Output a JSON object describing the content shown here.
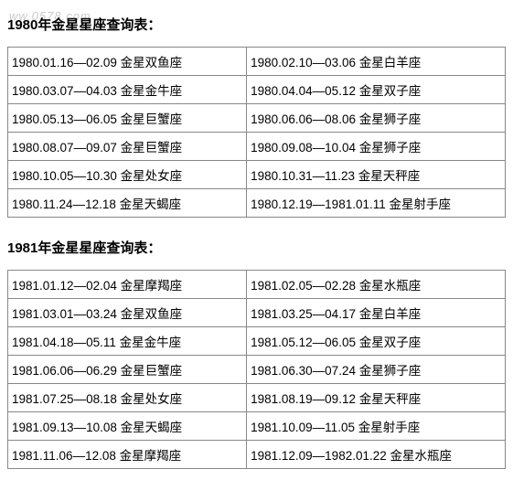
{
  "watermark": "ww.0578.com",
  "sections": [
    {
      "title": "1980年金星星座查询表：",
      "rows": [
        [
          "1980.01.16—02.09 金星双鱼座",
          "1980.02.10—03.06 金星白羊座"
        ],
        [
          "1980.03.07—04.03 金星金牛座",
          "1980.04.04—05.12 金星双子座"
        ],
        [
          "1980.05.13—06.05 金星巨蟹座",
          "1980.06.06—08.06 金星狮子座"
        ],
        [
          "1980.08.07—09.07 金星巨蟹座",
          "1980.09.08—10.04 金星狮子座"
        ],
        [
          "1980.10.05—10.30 金星处女座",
          "1980.10.31—11.23 金星天秤座"
        ],
        [
          "1980.11.24—12.18 金星天蝎座",
          "1980.12.19—1981.01.11 金星射手座"
        ]
      ]
    },
    {
      "title": "1981年金星星座查询表：",
      "rows": [
        [
          "1981.01.12—02.04 金星摩羯座",
          "1981.02.05—02.28 金星水瓶座"
        ],
        [
          "1981.03.01—03.24 金星双鱼座",
          "1981.03.25—04.17 金星白羊座"
        ],
        [
          "1981.04.18—05.11 金星金牛座",
          "1981.05.12—06.05 金星双子座"
        ],
        [
          "1981.06.06—06.29 金星巨蟹座",
          "1981.06.30—07.24 金星狮子座"
        ],
        [
          "1981.07.25—08.18 金星处女座",
          "1981.08.19—09.12 金星天秤座"
        ],
        [
          "1981.09.13—10.08 金星天蝎座",
          "1981.10.09—11.05 金星射手座"
        ],
        [
          "1981.11.06—12.08 金星摩羯座",
          "1981.12.09—1982.01.22 金星水瓶座"
        ]
      ]
    }
  ]
}
